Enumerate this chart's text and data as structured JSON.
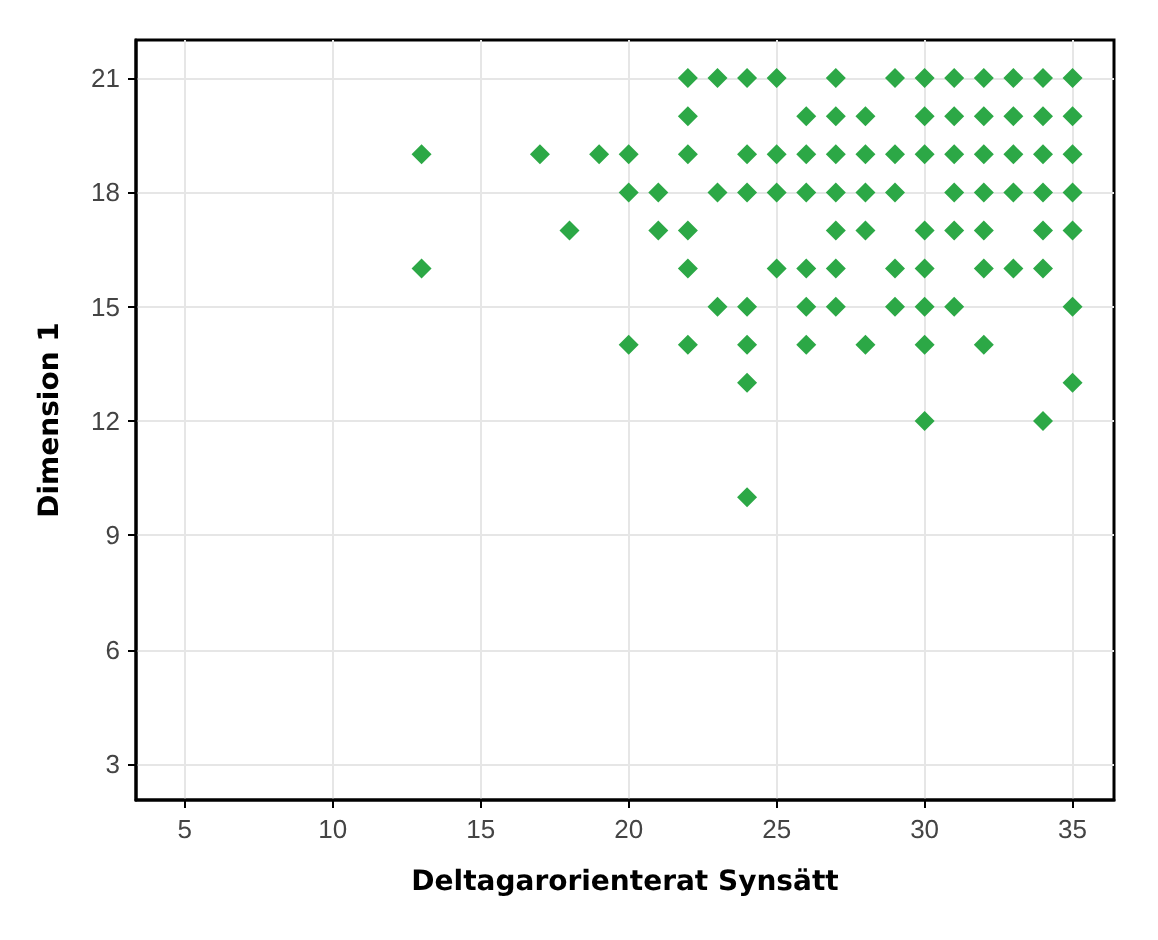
{
  "chart_data": {
    "type": "scatter",
    "xlabel": "Deltagarorienterat Synsätt",
    "ylabel": "Dimension 1",
    "x": [
      22,
      23,
      24,
      25,
      27,
      29,
      30,
      31,
      32,
      33,
      34,
      35,
      22,
      26,
      27,
      28,
      30,
      31,
      32,
      33,
      34,
      35,
      13,
      17,
      19,
      20,
      22,
      24,
      25,
      26,
      27,
      28,
      29,
      30,
      31,
      32,
      33,
      34,
      35,
      20,
      21,
      23,
      24,
      25,
      26,
      27,
      28,
      29,
      31,
      32,
      33,
      34,
      35,
      18,
      21,
      22,
      27,
      28,
      30,
      31,
      32,
      34,
      35,
      13,
      22,
      25,
      26,
      27,
      29,
      30,
      32,
      33,
      34,
      23,
      24,
      26,
      27,
      29,
      30,
      31,
      35,
      20,
      22,
      24,
      26,
      28,
      30,
      32,
      24,
      35,
      30,
      34,
      24
    ],
    "series": [
      {
        "color": "#2ca846",
        "values": [
          21,
          21,
          21,
          21,
          21,
          21,
          21,
          21,
          21,
          21,
          21,
          21,
          20,
          20,
          20,
          20,
          20,
          20,
          20,
          20,
          20,
          20,
          19,
          19,
          19,
          19,
          19,
          19,
          19,
          19,
          19,
          19,
          19,
          19,
          19,
          19,
          19,
          19,
          19,
          18,
          18,
          18,
          18,
          18,
          18,
          18,
          18,
          18,
          18,
          18,
          18,
          18,
          18,
          17,
          17,
          17,
          17,
          17,
          17,
          17,
          17,
          17,
          17,
          16,
          16,
          16,
          16,
          16,
          16,
          16,
          16,
          16,
          16,
          15,
          15,
          15,
          15,
          15,
          15,
          15,
          15,
          14,
          14,
          14,
          14,
          14,
          14,
          14,
          13,
          13,
          12,
          12,
          10
        ]
      }
    ],
    "xlim": [
      3.35,
      36.4
    ],
    "ylim": [
      2.05,
      22
    ],
    "xticks": [
      5,
      10,
      15,
      20,
      25,
      30,
      35
    ],
    "yticks": [
      3,
      6,
      9,
      12,
      15,
      18,
      21
    ],
    "grid": true,
    "marker": "diamond"
  }
}
